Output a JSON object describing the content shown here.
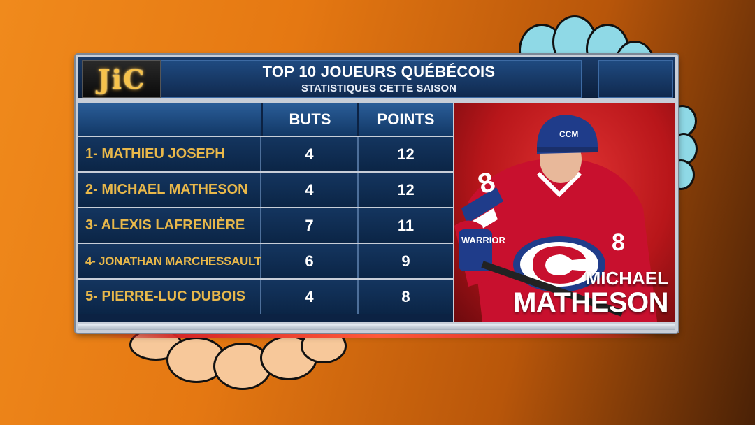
{
  "header": {
    "logo_text": "JiC",
    "title": "TOP 10 JOUEURS QUÉBÉCOIS",
    "subtitle": "STATISTIQUES CETTE SAISON"
  },
  "table": {
    "columns": [
      "BUTS",
      "POINTS"
    ],
    "rows": [
      {
        "name": "1- MATHIEU JOSEPH",
        "buts": "4",
        "points": "12"
      },
      {
        "name": "2- MICHAEL MATHESON",
        "buts": "4",
        "points": "12"
      },
      {
        "name": "3- ALEXIS LAFRENIÈRE",
        "buts": "7",
        "points": "11"
      },
      {
        "name": "4- JONATHAN MARCHESSAULT",
        "buts": "6",
        "points": "9"
      },
      {
        "name": "5- PIERRE-LUC DUBOIS",
        "buts": "4",
        "points": "8"
      }
    ]
  },
  "featured_player": {
    "first_name": "MICHAEL",
    "last_name": "MATHESON",
    "jersey_number": "8",
    "helmet_brand": "CCM",
    "stick_brand": "WARRIOR",
    "jersey_color": "#c8102e",
    "team_blue": "#1f3c8a"
  },
  "icons": {
    "logo": "jic-logo-icon",
    "decor": "flower-decoration-icon"
  }
}
